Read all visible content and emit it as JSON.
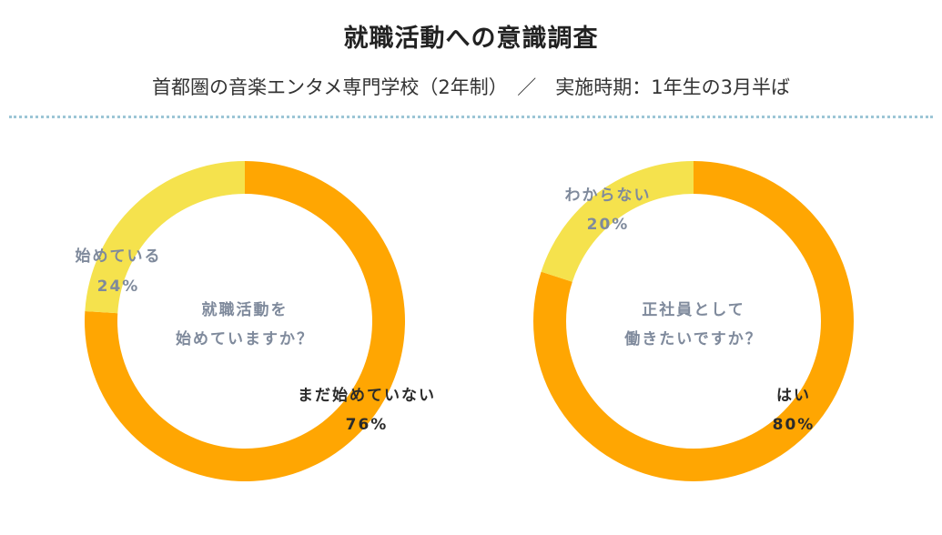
{
  "header": {
    "title": "就職活動への意識調査",
    "subtitle": "首都圏の音楽エンタメ専門学校（2年制）　／　実施時期：1年生の3月半ば"
  },
  "colors": {
    "primary": "#ffa602",
    "secondary": "#f5e24d",
    "label_dark": "#2b2b2b",
    "label_muted": "#7f8a9c",
    "divider": "#9cc6d6"
  },
  "chart_data": [
    {
      "type": "pie",
      "title": "",
      "center_text": [
        "就職活動を",
        "始めていますか？"
      ],
      "slices": [
        {
          "label": "まだ始めていない",
          "value": 76,
          "display": "76%",
          "color": "#ffa602"
        },
        {
          "label": "始めている",
          "value": 24,
          "display": "24%",
          "color": "#f5e24d"
        }
      ]
    },
    {
      "type": "pie",
      "title": "",
      "center_text": [
        "正社員として",
        "働きたいですか？"
      ],
      "slices": [
        {
          "label": "はい",
          "value": 80,
          "display": "80%",
          "color": "#ffa602"
        },
        {
          "label": "わからない",
          "value": 20,
          "display": "20%",
          "color": "#f5e24d"
        }
      ]
    }
  ]
}
